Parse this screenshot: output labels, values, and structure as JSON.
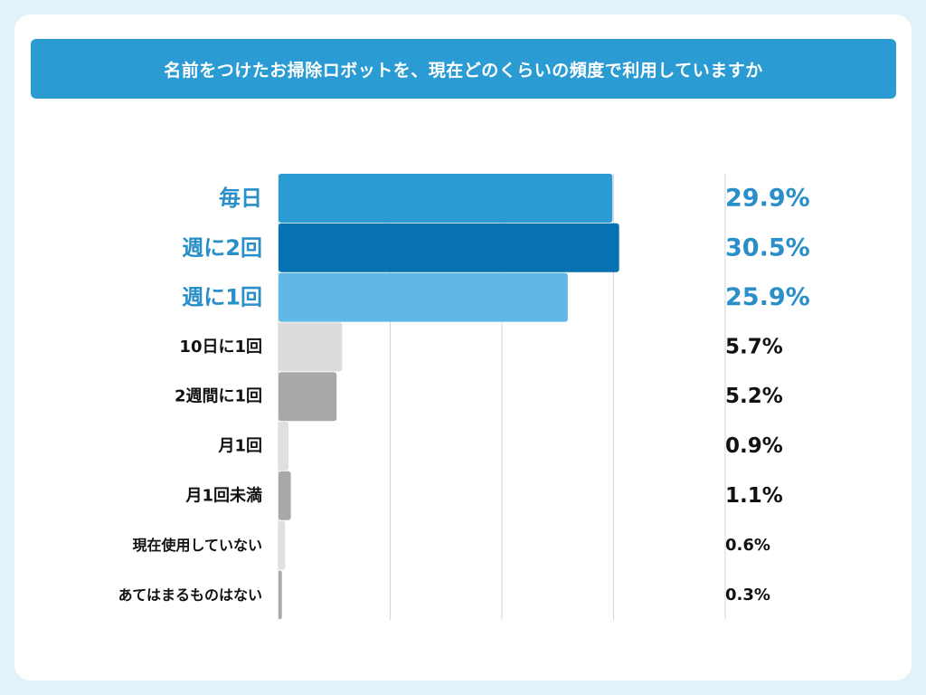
{
  "title": "名前をつけたお掃除ロボットを、現在どのくらいの頻度で利用していますか",
  "chart_data": {
    "type": "bar",
    "orientation": "horizontal",
    "title": "名前をつけたお掃除ロボットを、現在どのくらいの頻度で利用していますか",
    "unit": "%",
    "xlim": [
      0,
      40
    ],
    "grid": true,
    "categories": [
      "毎日",
      "週に2回",
      "週に1回",
      "10日に1回",
      "2週間に1回",
      "月1回",
      "月1回未満",
      "現在使用していない",
      "あてはまるものはない"
    ],
    "values": [
      29.9,
      30.5,
      25.9,
      5.7,
      5.2,
      0.9,
      1.1,
      0.6,
      0.3
    ],
    "value_labels": [
      "29.9%",
      "30.5%",
      "25.9%",
      "5.7%",
      "5.2%",
      "0.9%",
      "1.1%",
      "0.6%",
      "0.3%"
    ],
    "bar_colors": [
      "#2a9bd3",
      "#0672b2",
      "#5fb8e6",
      "#dcdcdc",
      "#a8a8a8",
      "#e0e0e0",
      "#a8a8a8",
      "#e0e0e0",
      "#a8a8a8"
    ],
    "label_colors": [
      "#2a8fc8",
      "#2a8fc8",
      "#2a8fc8",
      "#111111",
      "#111111",
      "#111111",
      "#111111",
      "#111111",
      "#111111"
    ],
    "label_emphasis": [
      "large",
      "large",
      "large",
      "medium",
      "medium",
      "medium",
      "medium",
      "small",
      "small"
    ]
  }
}
